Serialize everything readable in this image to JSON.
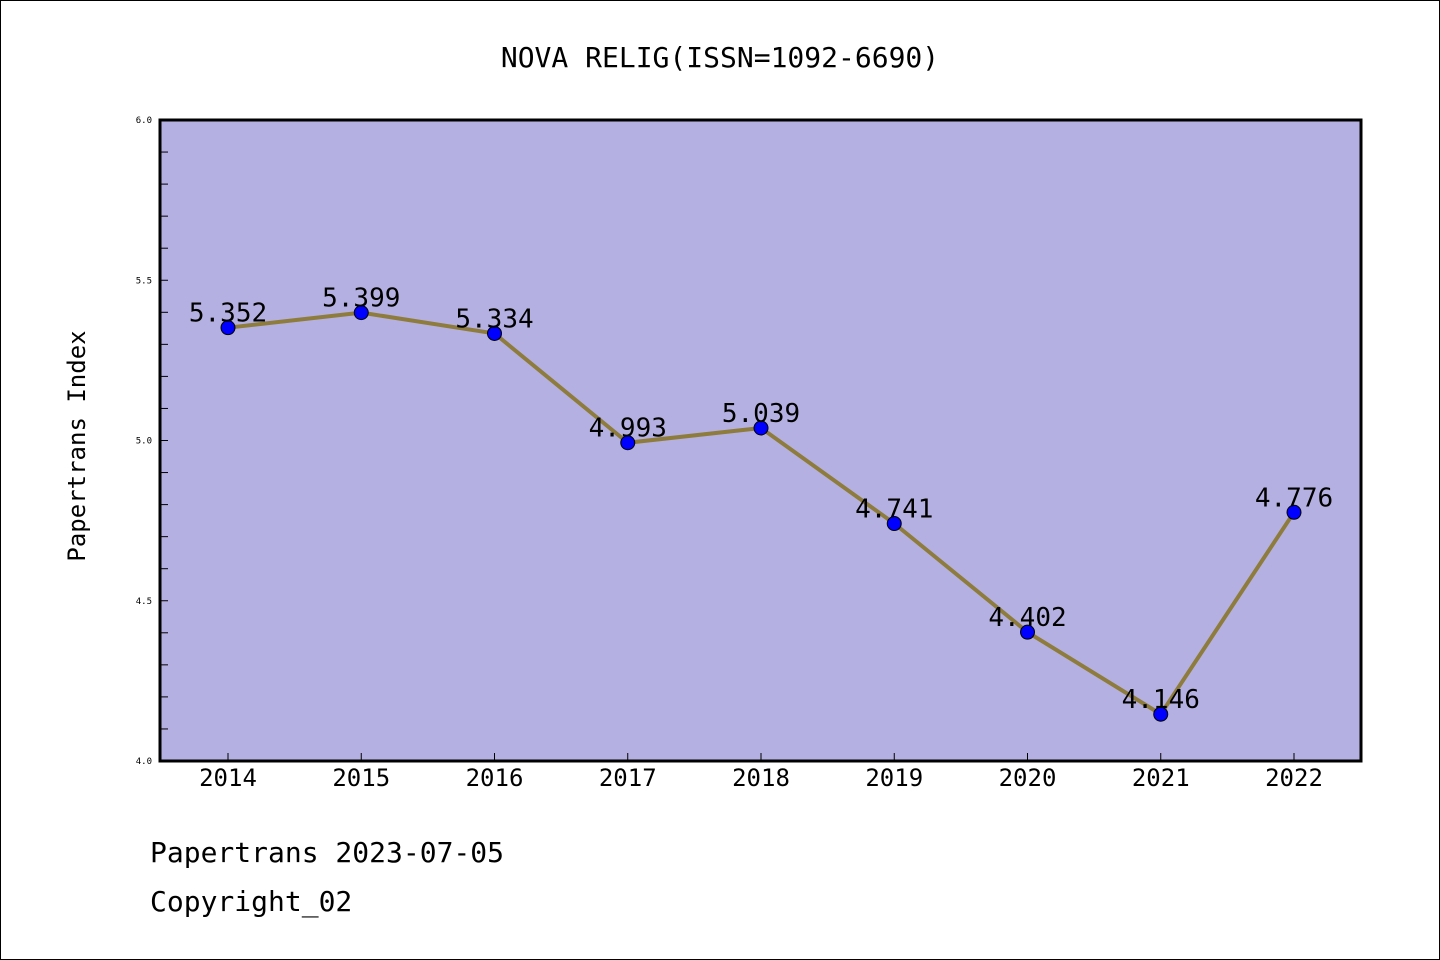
{
  "chart_data": {
    "type": "line",
    "title": "NOVA RELIG(ISSN=1092-6690)",
    "xlabel": "",
    "ylabel": "Papertrans Index",
    "categories": [
      "2014",
      "2015",
      "2016",
      "2017",
      "2018",
      "2019",
      "2020",
      "2021",
      "2022"
    ],
    "series": [
      {
        "values": [
          5.352,
          5.399,
          5.334,
          4.993,
          5.039,
          4.741,
          4.402,
          4.146,
          4.776
        ],
        "data_labels": [
          "5.352",
          "5.399",
          "5.334",
          "4.993",
          "5.039",
          "4.741",
          "4.402",
          "4.146",
          "4.776"
        ]
      }
    ],
    "ylim": [
      4.0,
      6.0
    ],
    "yticks": [
      "4.0",
      "4.5",
      "5.0",
      "5.5",
      "6.0"
    ],
    "grid": false,
    "legend": "none",
    "colors": {
      "plot_background": "#b5b0e2",
      "line": "#8e7c3c",
      "marker": "#0000ff"
    }
  },
  "footer": {
    "line1": "Papertrans 2023-07-05",
    "line2": "Copyright_02"
  }
}
